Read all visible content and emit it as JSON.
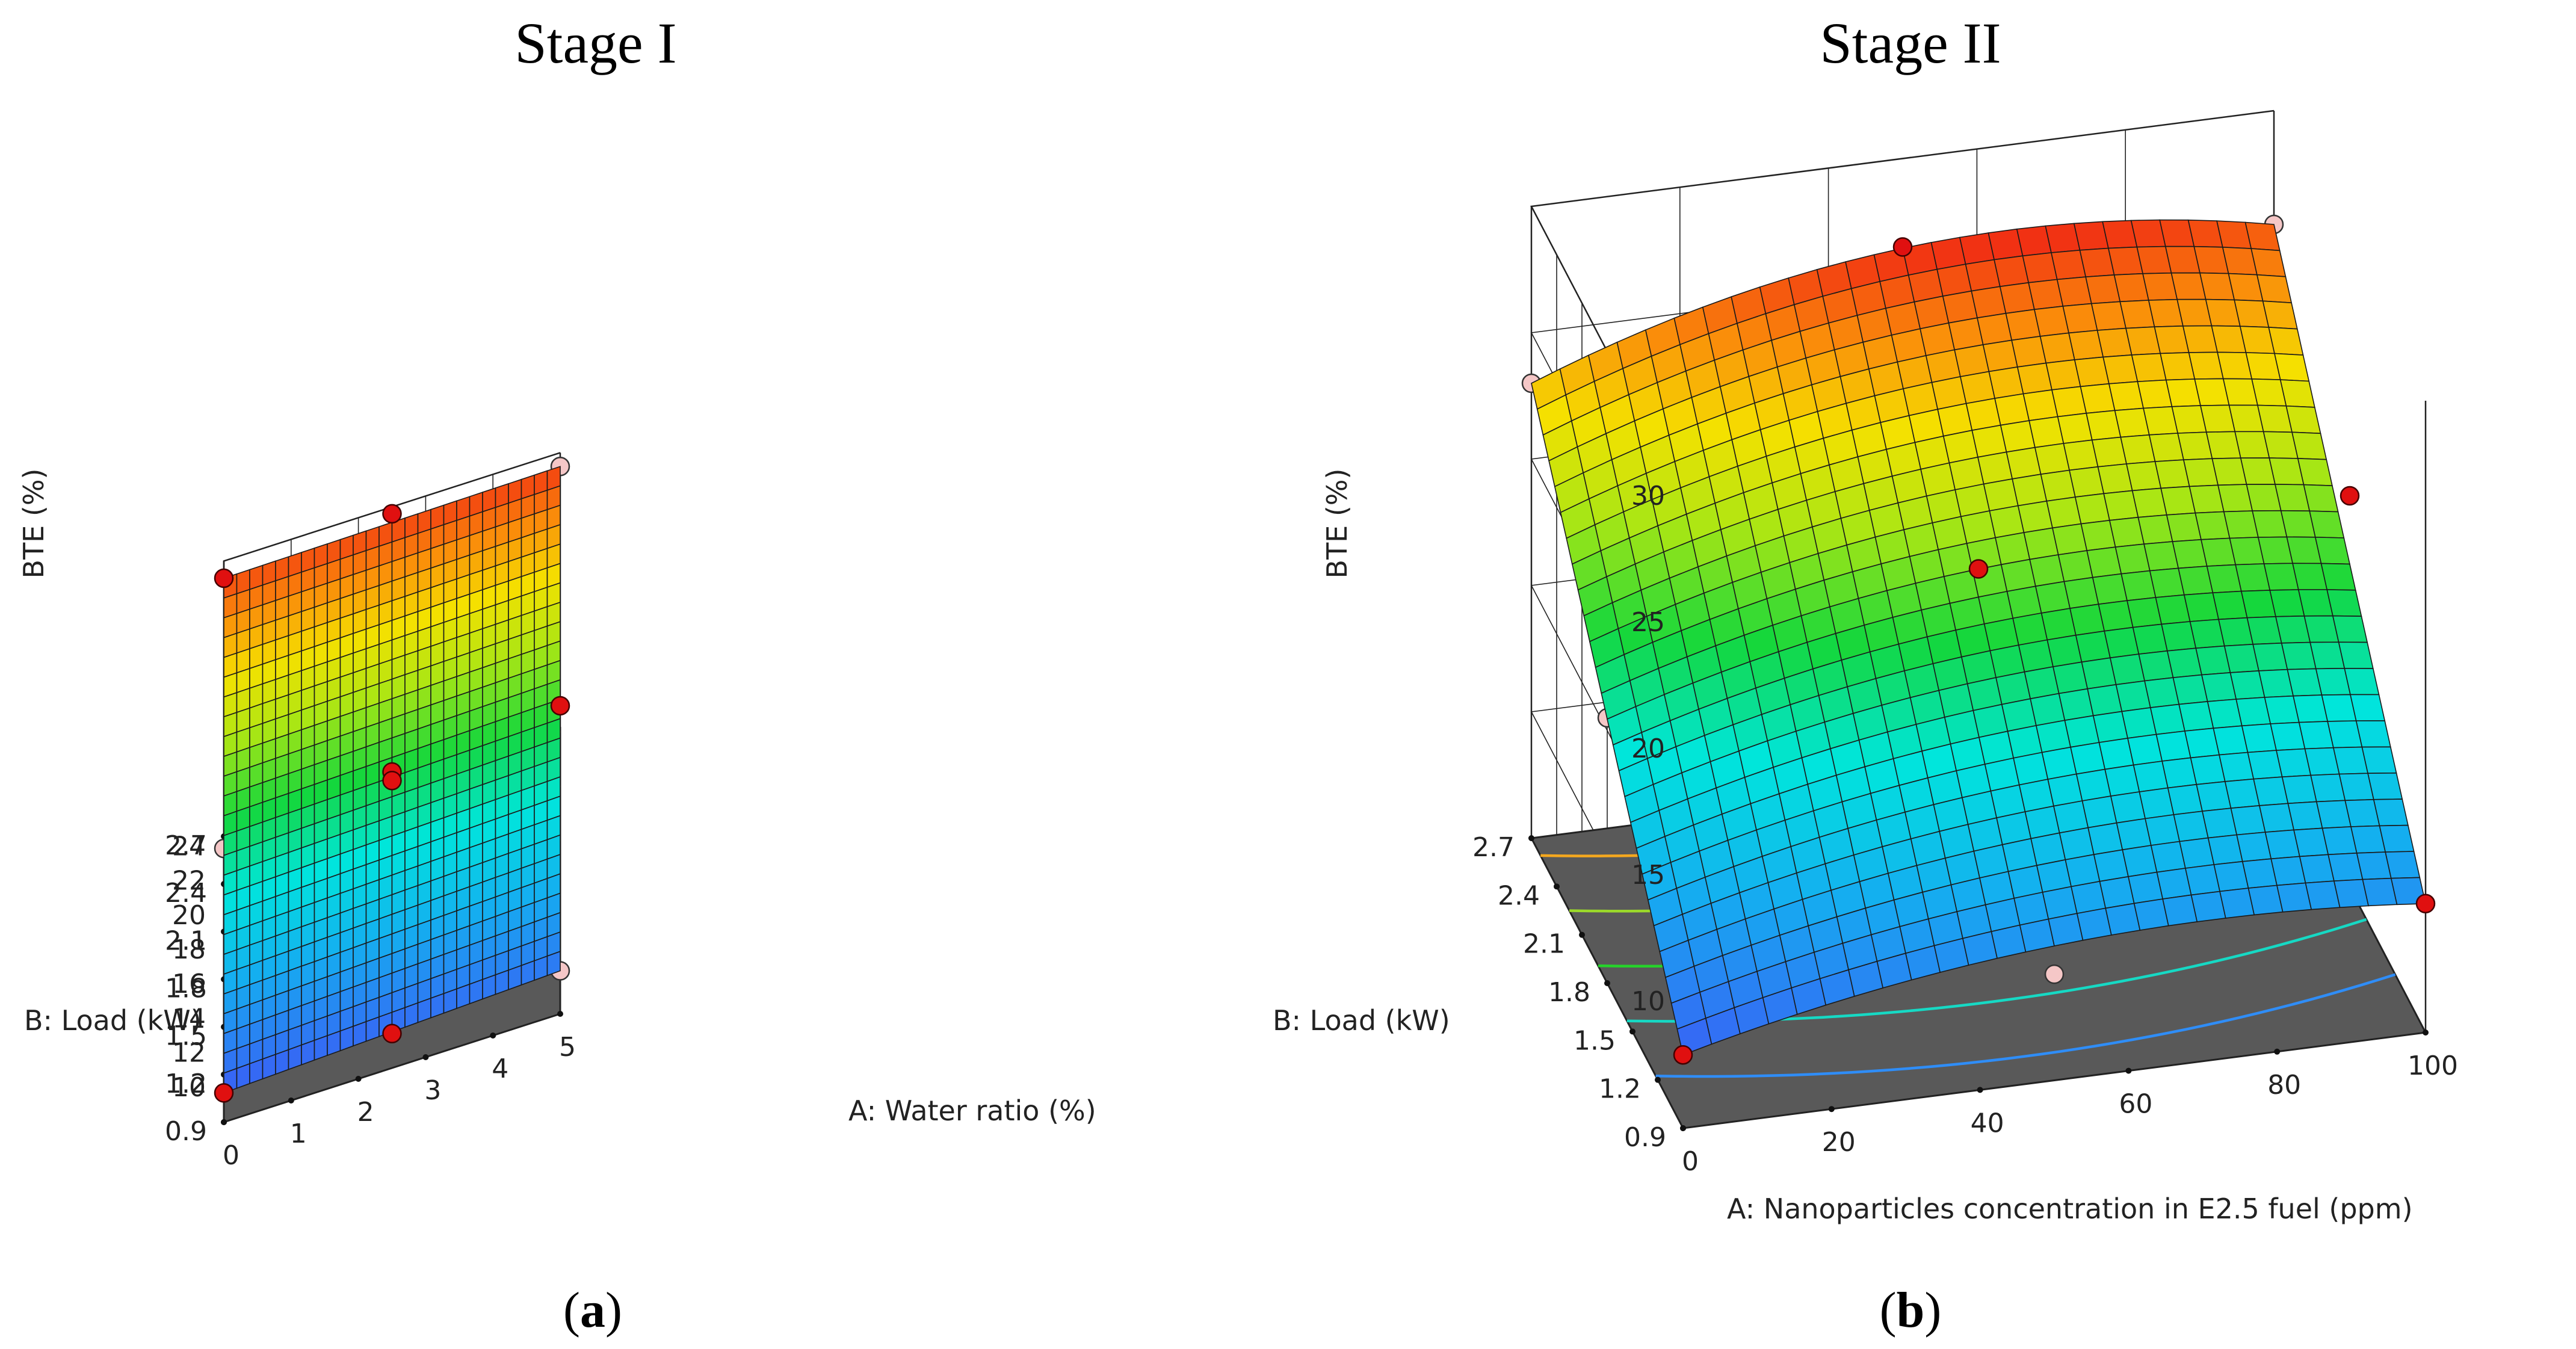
{
  "figure": {
    "panels": [
      {
        "title": "Stage I",
        "label_open": "(",
        "label_letter": "a",
        "label_close": ")"
      },
      {
        "title": "Stage II",
        "label_open": "(",
        "label_letter": "b",
        "label_close": ")"
      }
    ]
  },
  "chart_data": [
    {
      "type": "surface3d",
      "title": "Stage I",
      "xlabel": "A: Water ratio (%)",
      "ylabel": "B: Load (kW)",
      "zlabel": "BTE  (%)",
      "x_ticks": [
        "0",
        "1",
        "2",
        "3",
        "4",
        "5"
      ],
      "y_ticks": [
        "0.9",
        "1.2",
        "1.5",
        "1.8",
        "2.1",
        "2.4",
        "2.7"
      ],
      "z_ticks": [
        "10",
        "12",
        "14",
        "16",
        "18",
        "20",
        "22",
        "24"
      ],
      "xlim": [
        0,
        5
      ],
      "ylim": [
        0.9,
        2.7
      ],
      "zlim": [
        8,
        24
      ],
      "colorscale": "blue-cyan-green-yellow-orange-red",
      "surface_corners": {
        "x0_y0.9": 9.7,
        "x5_y0.9": 10.5,
        "x0_y2.7": 23.0,
        "x5_y2.7": 23.2
      },
      "grid_lines": 26,
      "floor_contour_colors": [
        "#2f8df7",
        "#16d9c4",
        "#25d32a",
        "#9bd92a",
        "#f5a81e"
      ],
      "design_points": [
        {
          "x": 0,
          "y": 2.7,
          "z": 23.0,
          "above": true
        },
        {
          "x": 2.5,
          "y": 2.7,
          "z": 23.6,
          "above": true
        },
        {
          "x": 5,
          "y": 2.7,
          "z": 23.2,
          "above": false
        },
        {
          "x": 2.5,
          "y": 1.8,
          "z": 16.9,
          "above": true
        },
        {
          "x": 2.5,
          "y": 1.8,
          "z": 16.4,
          "above": true
        },
        {
          "x": 0,
          "y": 1.8,
          "z": 15.6,
          "above": false
        },
        {
          "x": 5,
          "y": 1.8,
          "z": 17.6,
          "above": true
        },
        {
          "x": 0,
          "y": 0.9,
          "z": 9.7,
          "above": true
        },
        {
          "x": 2.5,
          "y": 0.9,
          "z": 10.0,
          "above": true
        },
        {
          "x": 5,
          "y": 0.9,
          "z": 10.5,
          "above": false
        }
      ]
    },
    {
      "type": "surface3d",
      "title": "Stage II",
      "xlabel": "A: Nanoparticles concentration in E2.5 fuel (ppm)",
      "ylabel": "B: Load (kW)",
      "zlabel": "BTE (%)",
      "x_ticks": [
        "0",
        "20",
        "40",
        "60",
        "80",
        "100"
      ],
      "y_ticks": [
        "0.9",
        "1.2",
        "1.5",
        "1.8",
        "2.1",
        "2.4",
        "2.7"
      ],
      "z_ticks": [
        "10",
        "15",
        "20",
        "25",
        "30"
      ],
      "xlim": [
        0,
        100
      ],
      "ylim": [
        0.9,
        2.7
      ],
      "zlim": [
        5,
        30
      ],
      "colorscale": "blue-cyan-green-yellow-orange-red",
      "surface_corners": {
        "x0_y0.9": 7.9,
        "x100_y0.9": 10.1,
        "x0_y2.7": 23.0,
        "x100_y2.7": 25.5
      },
      "grid_lines": 26,
      "floor_contour_colors": [
        "#2f8df7",
        "#16d9c4",
        "#25d32a",
        "#9bd92a",
        "#f5a81e"
      ],
      "design_points": [
        {
          "x": 0,
          "y": 2.7,
          "z": 23.0,
          "above": false
        },
        {
          "x": 50,
          "y": 2.7,
          "z": 26.5,
          "above": true
        },
        {
          "x": 100,
          "y": 2.7,
          "z": 25.5,
          "above": false
        },
        {
          "x": 50,
          "y": 1.8,
          "z": 19.5,
          "above": true
        },
        {
          "x": 0,
          "y": 1.8,
          "z": 15.5,
          "above": false
        },
        {
          "x": 100,
          "y": 1.8,
          "z": 20.5,
          "above": true
        },
        {
          "x": 0,
          "y": 0.9,
          "z": 7.9,
          "above": true
        },
        {
          "x": 50,
          "y": 0.9,
          "z": 9.2,
          "above": false
        },
        {
          "x": 100,
          "y": 0.9,
          "z": 10.1,
          "above": true
        }
      ]
    }
  ]
}
